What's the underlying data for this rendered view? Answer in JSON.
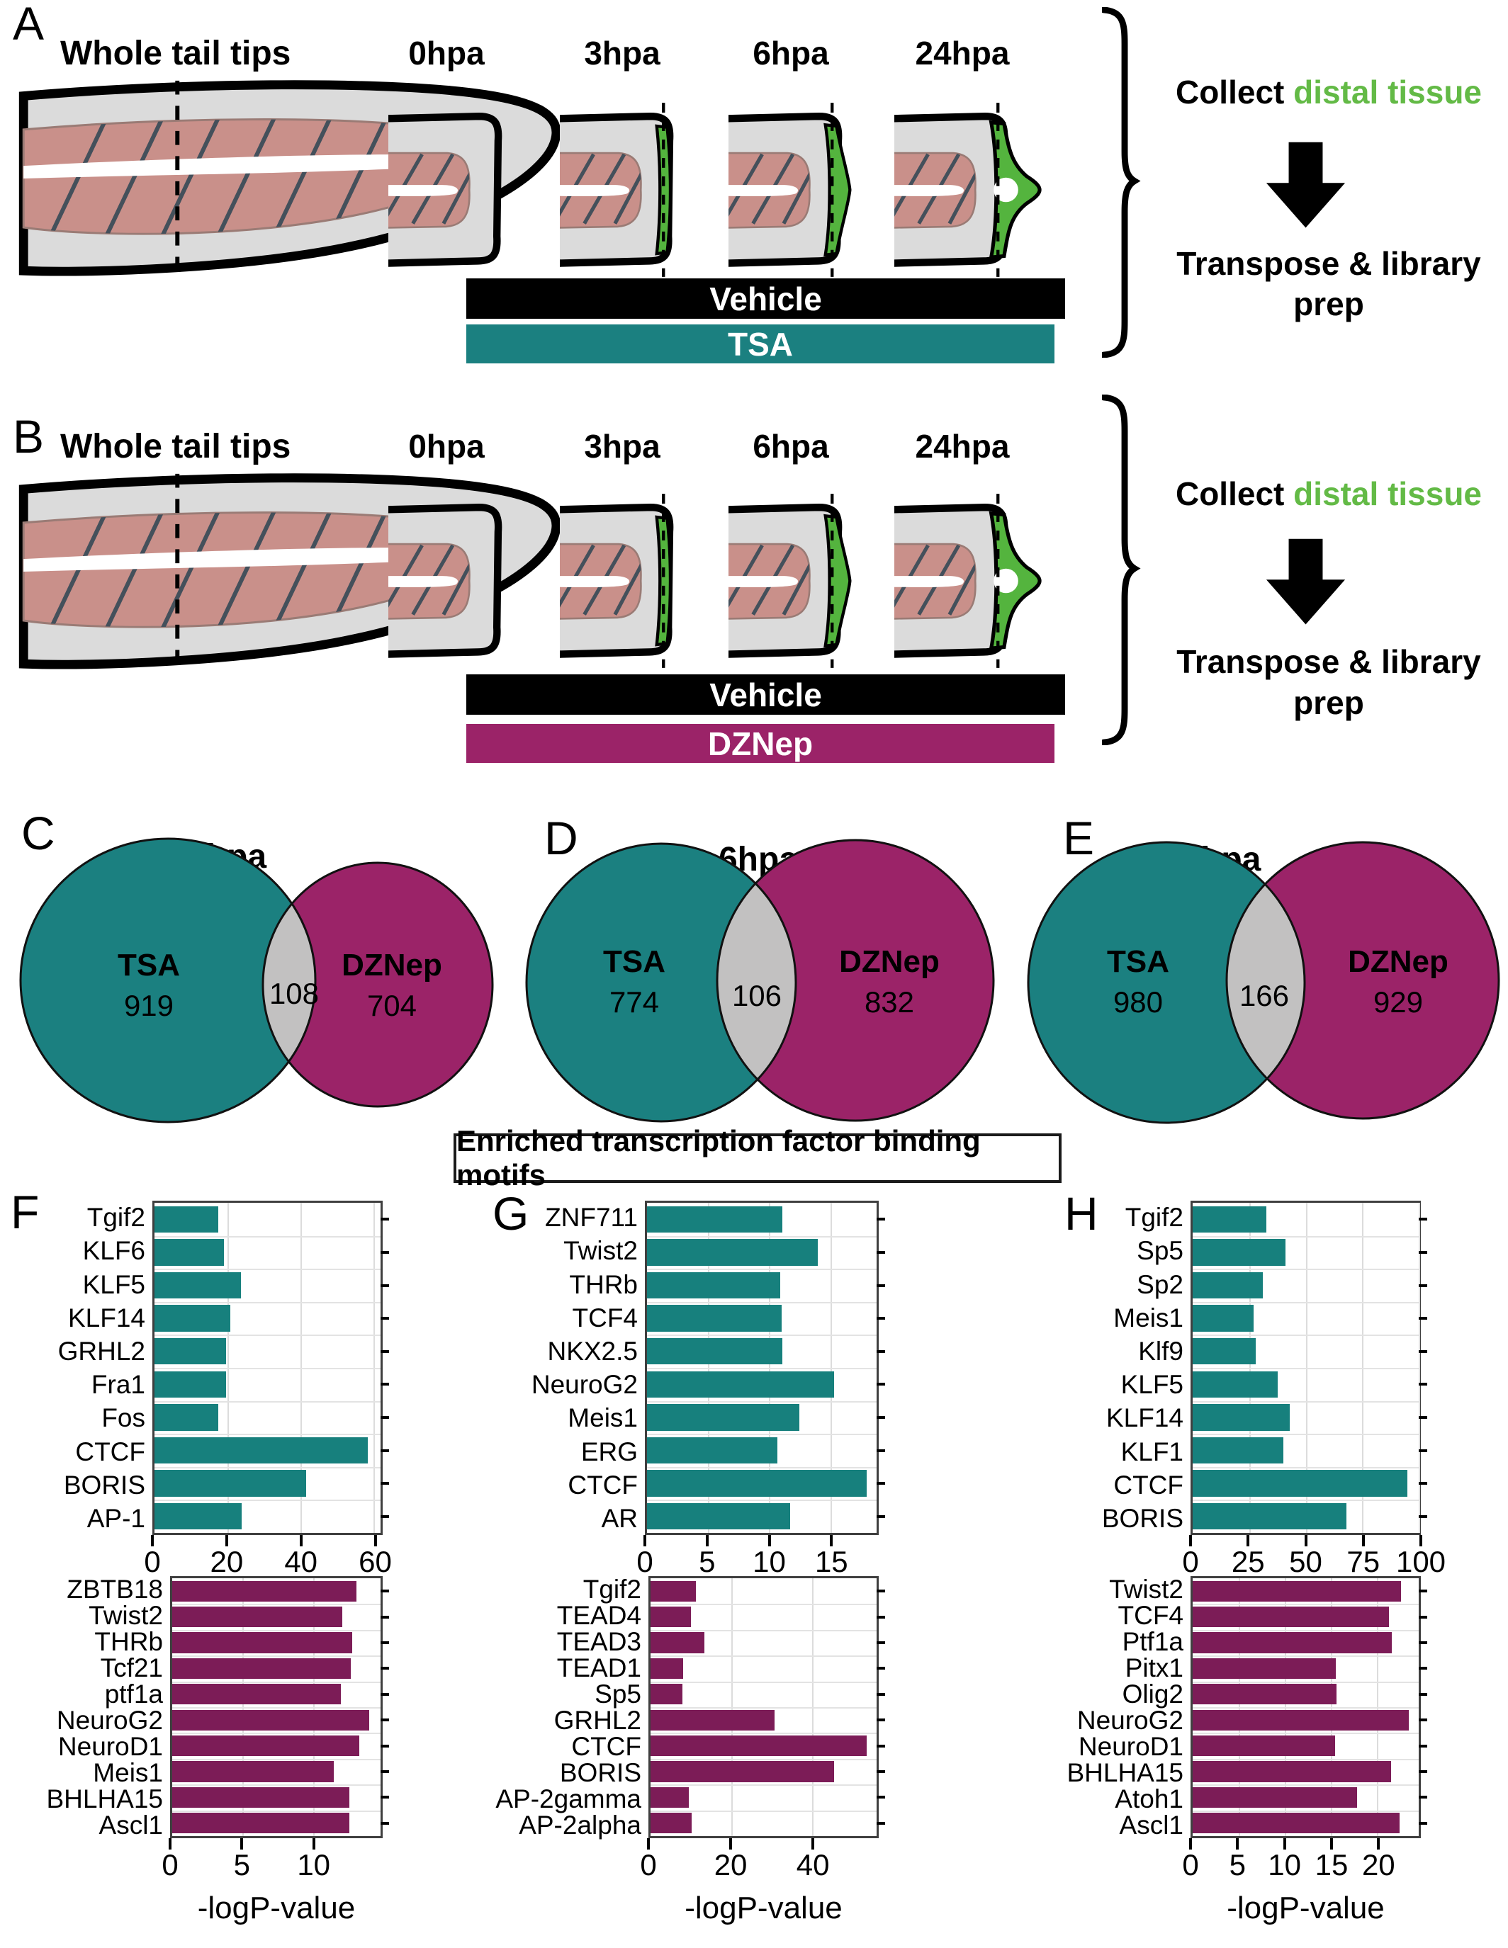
{
  "figure": {
    "panels_ab": [
      {
        "letter": "A",
        "tail_label": "Whole tail tips",
        "timepoints": [
          "0hpa",
          "3hpa",
          "6hpa",
          "24hpa"
        ],
        "bars": [
          {
            "label": "Vehicle",
            "bg": "black"
          },
          {
            "label": "TSA",
            "bg": "teal"
          }
        ],
        "collect_black": "Collect",
        "collect_green": "distal tissue",
        "transpose_line1": "Transpose & library",
        "transpose_line2": "prep"
      },
      {
        "letter": "B",
        "tail_label": "Whole tail tips",
        "timepoints": [
          "0hpa",
          "3hpa",
          "6hpa",
          "24hpa"
        ],
        "bars": [
          {
            "label": "Vehicle",
            "bg": "black"
          },
          {
            "label": "DZNep",
            "bg": "magenta"
          }
        ],
        "collect_black": "Collect",
        "collect_green": "distal tissue",
        "transpose_line1": "Transpose & library",
        "transpose_line2": "prep"
      }
    ],
    "venn_panels": [
      {
        "letter": "C",
        "title": "3hpa",
        "left_name": "TSA",
        "left_value": "919",
        "overlap_value": "108",
        "right_name": "DZNep",
        "right_value": "704"
      },
      {
        "letter": "D",
        "title": "6hpa",
        "left_name": "TSA",
        "left_value": "774",
        "overlap_value": "106",
        "right_name": "DZNep",
        "right_value": "832"
      },
      {
        "letter": "E",
        "title": "24hpa",
        "left_name": "TSA",
        "left_value": "980",
        "overlap_value": "166",
        "right_name": "DZNep",
        "right_value": "929"
      }
    ],
    "motif_box": "Enriched transcription factor binding motifs",
    "chart_letters": [
      "F",
      "G",
      "H"
    ]
  },
  "colors": {
    "black": "#000000",
    "teal": "#1B8080",
    "magenta": "#9B2368",
    "chart_teal": "#17807D",
    "chart_purple": "#7C1C57",
    "regenerate_green": "#54B43E",
    "distal_text_green": "#63BA46",
    "fin_gray": "#DBDBDB",
    "muscle_pink": "#C9908A",
    "overlap_gray": "#C2C1C1"
  },
  "chart_data": [
    {
      "id": "f_top",
      "panel": "F",
      "position": "top",
      "type": "bar",
      "orientation": "horizontal",
      "color": "chart_teal",
      "treatment": "TSA",
      "timepoint": "3hpa",
      "categories": [
        "Tgif2",
        "KLF6",
        "KLF5",
        "KLF14",
        "GRHL2",
        "Fra1",
        "Fos",
        "CTCF",
        "BORIS",
        "AP-1"
      ],
      "values": [
        17.4,
        19,
        23.7,
        20.7,
        19.6,
        19.6,
        17.4,
        58.5,
        41.5,
        24
      ],
      "xticks": [
        0,
        20,
        40,
        60
      ],
      "xmax": 62,
      "xlabel": ""
    },
    {
      "id": "f_bottom",
      "panel": "F",
      "position": "bottom",
      "type": "bar",
      "orientation": "horizontal",
      "color": "chart_purple",
      "treatment": "DZNep",
      "timepoint": "3hpa",
      "categories": [
        "ZBTB18",
        "Twist2",
        "THRb",
        "Tcf21",
        "ptf1a",
        "NeuroG2",
        "NeuroD1",
        "Meis1",
        "BHLHA15",
        "Ascl1"
      ],
      "values": [
        13.1,
        12.1,
        12.8,
        12.7,
        12.0,
        14.0,
        13.3,
        11.5,
        12.6,
        12.6
      ],
      "xticks": [
        0,
        5,
        10
      ],
      "xmax": 14.8,
      "xlabel": "-logP-value"
    },
    {
      "id": "g_top",
      "panel": "G",
      "position": "top",
      "type": "bar",
      "orientation": "horizontal",
      "color": "chart_teal",
      "treatment": "TSA",
      "timepoint": "6hpa",
      "categories": [
        "ZNF711",
        "Twist2",
        "THRb",
        "TCF4",
        "NKX2.5",
        "NeuroG2",
        "Meis1",
        "ERG",
        "CTCF",
        "AR"
      ],
      "values": [
        11.1,
        14.0,
        10.9,
        11.0,
        11.1,
        15.3,
        12.5,
        10.7,
        18.0,
        11.7
      ],
      "xticks": [
        0,
        5,
        10,
        15
      ],
      "xmax": 18.8,
      "xlabel": ""
    },
    {
      "id": "g_bottom",
      "panel": "G",
      "position": "bottom",
      "type": "bar",
      "orientation": "horizontal",
      "color": "chart_purple",
      "treatment": "DZNep",
      "timepoint": "6hpa",
      "categories": [
        "Tgif2",
        "TEAD4",
        "TEAD3",
        "TEAD1",
        "Sp5",
        "GRHL2",
        "CTCF",
        "BORIS",
        "AP-2gamma",
        "AP-2alpha"
      ],
      "values": [
        11.2,
        10.0,
        13.3,
        8.1,
        7.9,
        30.7,
        53.5,
        45.5,
        9.5,
        10.2
      ],
      "xticks": [
        0,
        20,
        40
      ],
      "xmax": 56,
      "xlabel": "-logP-value"
    },
    {
      "id": "h_top",
      "panel": "H",
      "position": "top",
      "type": "bar",
      "orientation": "horizontal",
      "color": "chart_teal",
      "treatment": "TSA",
      "timepoint": "24hpa",
      "categories": [
        "Tgif2",
        "Sp5",
        "Sp2",
        "Meis1",
        "Klf9",
        "KLF5",
        "KLF14",
        "KLF1",
        "CTCF",
        "BORIS"
      ],
      "values": [
        32.5,
        41,
        31,
        27,
        28,
        37.5,
        43,
        40,
        95,
        68
      ],
      "xticks": [
        0,
        25,
        50,
        75,
        100
      ],
      "xmax": 100,
      "xlabel": ""
    },
    {
      "id": "h_bottom",
      "panel": "H",
      "position": "bottom",
      "type": "bar",
      "orientation": "horizontal",
      "color": "chart_purple",
      "treatment": "DZNep",
      "timepoint": "24hpa",
      "categories": [
        "Twist2",
        "TCF4",
        "Ptf1a",
        "Pitx1",
        "Olig2",
        "NeuroG2",
        "NeuroD1",
        "BHLHA15",
        "Atoh1",
        "Ascl1"
      ],
      "values": [
        22.6,
        21.3,
        21.6,
        15.5,
        15.6,
        23.4,
        15.4,
        21.5,
        17.8,
        22.4
      ],
      "xticks": [
        0,
        5,
        10,
        15,
        20
      ],
      "xmax": 24.5,
      "xlabel": "-logP-value"
    }
  ]
}
